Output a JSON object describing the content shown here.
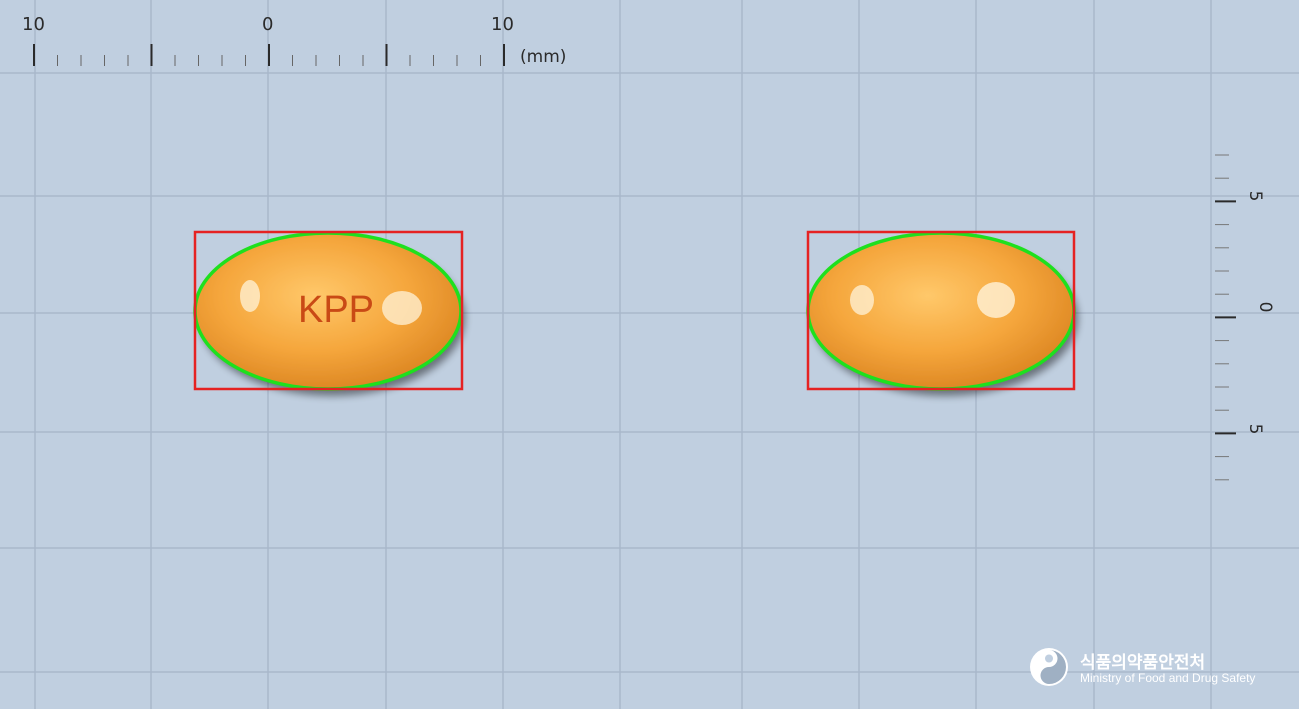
{
  "ruler_top": {
    "labels": [
      "10",
      "0",
      "10"
    ],
    "unit": "(mm)"
  },
  "ruler_right": {
    "labels": [
      "5",
      "0",
      "5"
    ]
  },
  "pills": [
    {
      "side": "front",
      "imprint": "KPP",
      "color": "#f4a53a",
      "shape": "oval"
    },
    {
      "side": "back",
      "imprint": "",
      "color": "#f4a53a",
      "shape": "oval"
    }
  ],
  "overlay_colors": {
    "bounding_box": "#e52222",
    "contour": "#1ee01e",
    "grid_line": "#a9b8cb",
    "background": "#c0cfe0"
  },
  "logo": {
    "korean_name": "식품의약품안전처",
    "english_name": "Ministry of Food and Drug Safety"
  }
}
